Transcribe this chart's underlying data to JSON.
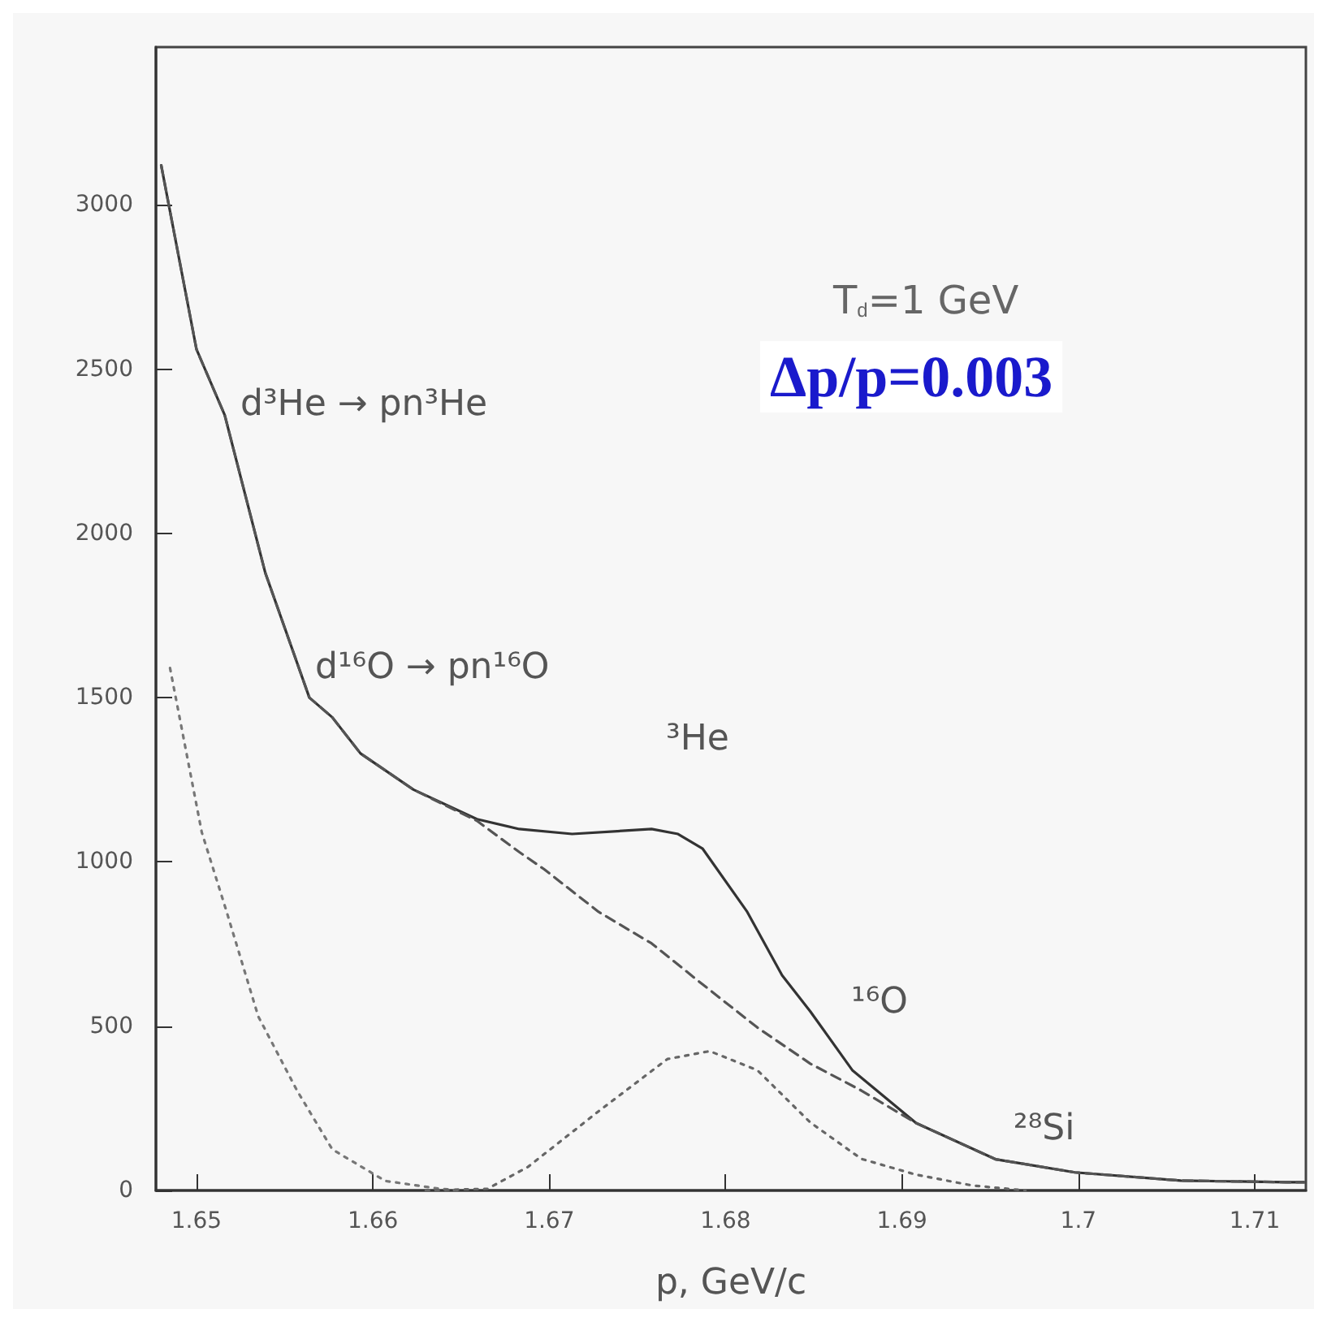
{
  "chart_data": {
    "type": "line",
    "xlabel": "p, GeV/c",
    "xlim": [
      1.6477,
      1.7129
    ],
    "xticks": [
      1.65,
      1.66,
      1.67,
      1.68,
      1.69,
      1.7,
      1.71
    ],
    "ylim": [
      0,
      3480
    ],
    "yticks": [
      0,
      500,
      1000,
      1500,
      2000,
      2500,
      3000
    ],
    "marker": "none",
    "series": [
      {
        "color": "#333333",
        "line_style": "solid",
        "x": [
          1.648,
          1.65,
          1.6516,
          1.6539,
          1.6564,
          1.6577,
          1.6593,
          1.6623,
          1.6659,
          1.6683,
          1.6713,
          1.6758,
          1.6773,
          1.6787,
          1.6812,
          1.6832,
          1.6848,
          1.6872,
          1.6908,
          1.6953,
          1.6998,
          1.7058,
          1.7118,
          1.7128
        ],
        "values": [
          3120,
          2560,
          2360,
          1880,
          1500,
          1440,
          1330,
          1220,
          1130,
          1100,
          1085,
          1100,
          1085,
          1040,
          850,
          655,
          545,
          365,
          205,
          95,
          55,
          30,
          25,
          25
        ]
      },
      {
        "color": "#555555",
        "line_style": "dashed",
        "x": [
          1.648,
          1.65,
          1.6516,
          1.6539,
          1.6564,
          1.6577,
          1.6593,
          1.6623,
          1.6659,
          1.6683,
          1.6697,
          1.6728,
          1.6758,
          1.6787,
          1.6818,
          1.6848,
          1.6877,
          1.6908,
          1.6953,
          1.6998,
          1.7058,
          1.7118,
          1.7128
        ],
        "values": [
          3120,
          2560,
          2360,
          1880,
          1500,
          1440,
          1330,
          1220,
          1125,
          1030,
          978,
          848,
          752,
          627,
          496,
          386,
          304,
          205,
          95,
          55,
          30,
          25,
          25
        ]
      },
      {
        "color": "#777777",
        "line_style": "dotted",
        "x": [
          1.6485,
          1.6503,
          1.6517,
          1.6535,
          1.6557,
          1.6577,
          1.6607,
          1.6638,
          1.665
        ],
        "values": [
          1590,
          1090,
          850,
          530,
          304,
          125,
          29,
          5,
          0
        ]
      },
      {
        "color": "#666666",
        "line_style": "dotted",
        "x": [
          1.663,
          1.6665,
          1.6688,
          1.6728,
          1.6767,
          1.6791,
          1.6818,
          1.6848,
          1.6877,
          1.6908,
          1.694,
          1.697
        ],
        "values": [
          0,
          5,
          72,
          241,
          400,
          424,
          366,
          207,
          96,
          48,
          15,
          0
        ]
      }
    ],
    "annotations": [
      "d³He → pn³He",
      "d¹⁶O → pn¹⁶O",
      "³He",
      "¹⁶O",
      "²⁸Si",
      "T$_{d}$=1 GeV",
      "Δp/p=0.003"
    ]
  }
}
